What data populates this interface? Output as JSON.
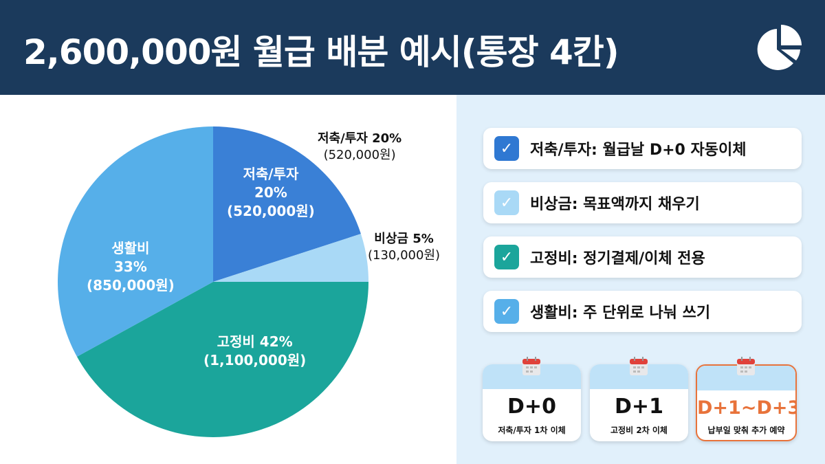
{
  "header": {
    "title": "2,600,000원 월급 배분 예시(통장 4칸)",
    "icon": "pie-chart-icon"
  },
  "chart_data": {
    "type": "pie",
    "title": "2,600,000원 월급 배분 예시(통장 4칸)",
    "total": 2600000,
    "slices": [
      {
        "name": "저축/투자",
        "percent": 20,
        "amount": 520000,
        "amount_label": "(520,000원)",
        "color": "#3a80d6"
      },
      {
        "name": "비상금",
        "percent": 5,
        "amount": 130000,
        "amount_label": "(130,000원)",
        "color": "#a9d9f6"
      },
      {
        "name": "고정비",
        "percent": 42,
        "amount": 1100000,
        "amount_label": "(1,100,000원)",
        "color": "#1ba59b"
      },
      {
        "name": "생활비",
        "percent": 33,
        "amount": 850000,
        "amount_label": "(850,000원)",
        "color": "#56afe9"
      }
    ],
    "inner_labels": {
      "savings_name": "저축/투자",
      "savings_pct": "20%",
      "fixed": "고정비 42%",
      "living_name": "생활비",
      "living_pct": "33%"
    },
    "outer_labels": {
      "savings": "저축/투자 20%",
      "emergency": "비상금 5%"
    }
  },
  "checklist": [
    {
      "text": "저축/투자: 월급날 D+0 자동이체",
      "color": "#2f78d2"
    },
    {
      "text": "비상금: 목표액까지 채우기",
      "color": "#a9d9f6"
    },
    {
      "text": "고정비: 정기결제/이체 전용",
      "color": "#1ba59b"
    },
    {
      "text": "생활비: 주 단위로 나눠 쓰기",
      "color": "#56afe9"
    }
  ],
  "schedule": [
    {
      "day": "D+0",
      "desc": "저축/투자 1차 이체"
    },
    {
      "day": "D+1",
      "desc": "고정비 2차 이체"
    },
    {
      "day": "D+1~D+3",
      "desc": "납부일 맞춰 추가 예약"
    }
  ]
}
